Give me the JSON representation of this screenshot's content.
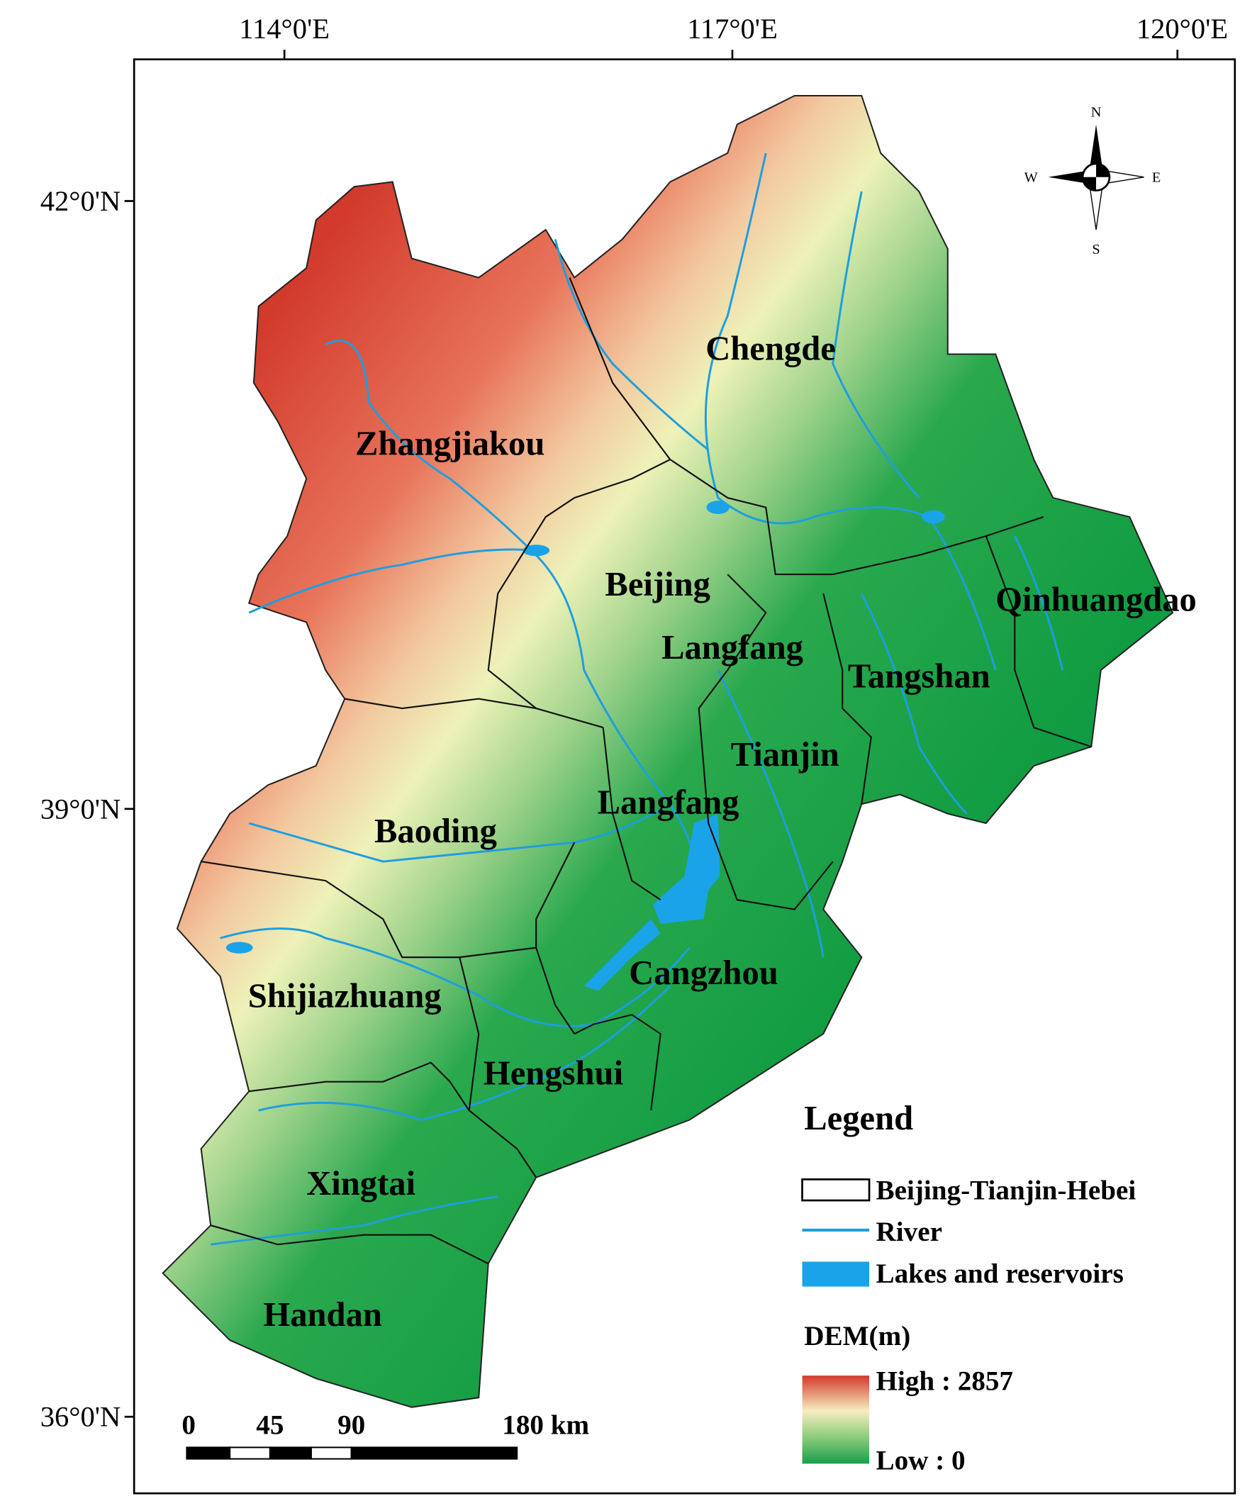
{
  "map": {
    "longitude_labels": [
      "114°0'E",
      "117°0'E",
      "120°0'E"
    ],
    "latitude_labels": [
      "42°0'N",
      "39°0'N",
      "36°0'N"
    ],
    "places": [
      "Zhangjiakou",
      "Chengde",
      "Beijing",
      "Langfang",
      "Tangshan",
      "Qinhuangdao",
      "Tianjin",
      "Langfang",
      "Baoding",
      "Shijiazhuang",
      "Cangzhou",
      "Hengshui",
      "Xingtai",
      "Handan"
    ],
    "compass": {
      "north": "N",
      "east": "E",
      "south": "S",
      "west": "W"
    },
    "scale_bar": [
      "0",
      "45",
      "90",
      "180 km"
    ],
    "legend": {
      "title": "Legend",
      "items": [
        "Beijing-Tianjin-Hebei",
        "River",
        "Lakes and reservoirs"
      ],
      "dem_title": "DEM(m)",
      "high": "High : 2857",
      "low": "Low : 0"
    }
  }
}
